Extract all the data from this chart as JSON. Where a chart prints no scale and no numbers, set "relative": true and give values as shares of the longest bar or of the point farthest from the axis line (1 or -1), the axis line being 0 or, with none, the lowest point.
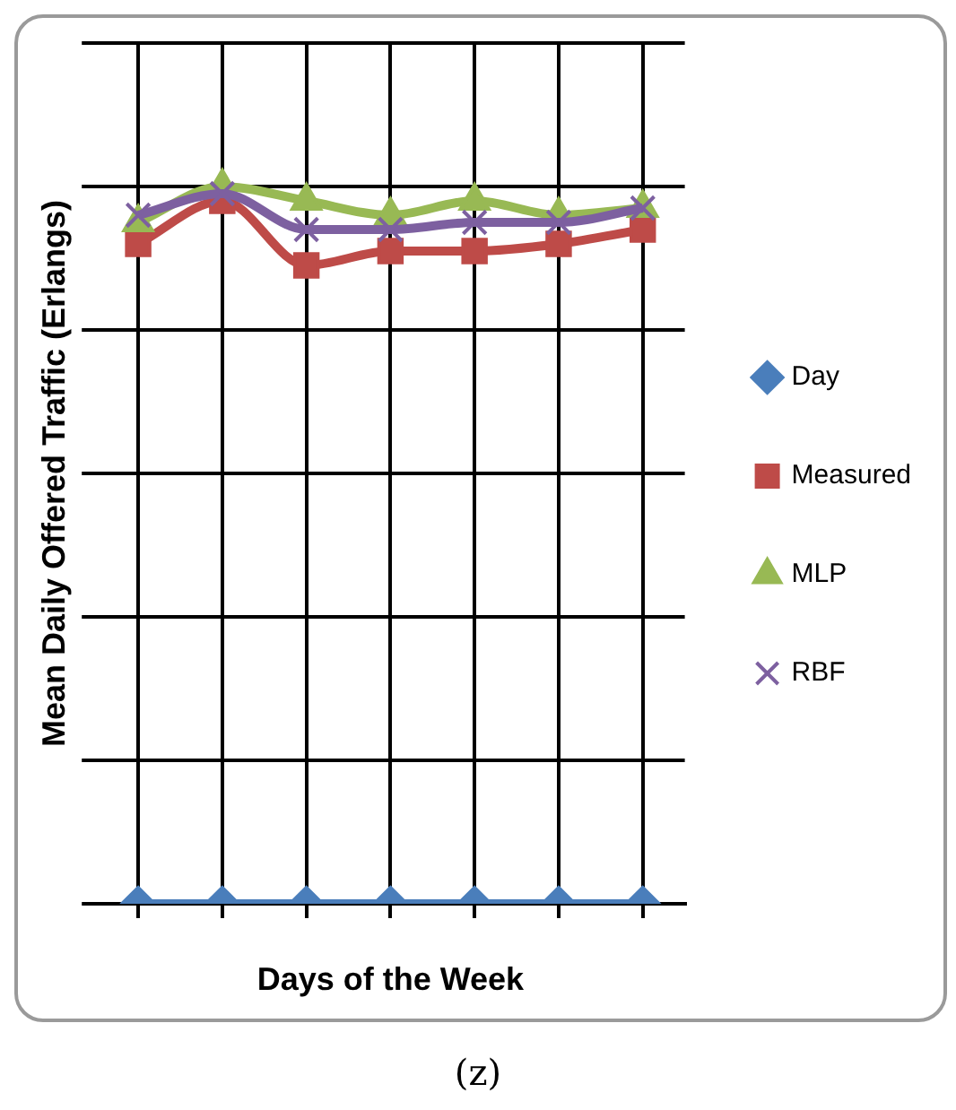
{
  "chart_data": {
    "type": "line",
    "relative": true,
    "xlabel": "Days of the Week",
    "ylabel": "Mean Daily Offered Traffic (Erlangs)",
    "categories": [
      null,
      null,
      null,
      null,
      null,
      null,
      null
    ],
    "series": [
      {
        "name": "Day",
        "color": "#4a7ebb",
        "marker": "diamond",
        "values": [
          0,
          0,
          0,
          0,
          0,
          0,
          0
        ]
      },
      {
        "name": "Measured",
        "color": "#be4b48",
        "marker": "square",
        "values": [
          0.92,
          0.98,
          0.89,
          0.91,
          0.91,
          0.92,
          0.94
        ]
      },
      {
        "name": "MLP",
        "color": "#98b954",
        "marker": "triangle",
        "values": [
          0.95,
          1,
          0.98,
          0.96,
          0.98,
          0.96,
          0.97
        ]
      },
      {
        "name": "RBF",
        "color": "#7d60a0",
        "marker": "cross",
        "values": [
          0.96,
          0.99,
          0.94,
          0.94,
          0.95,
          0.95,
          0.97
        ]
      }
    ],
    "grid": true,
    "legend": "right",
    "line_style": "solid",
    "annotations": [
      "(z)"
    ]
  }
}
